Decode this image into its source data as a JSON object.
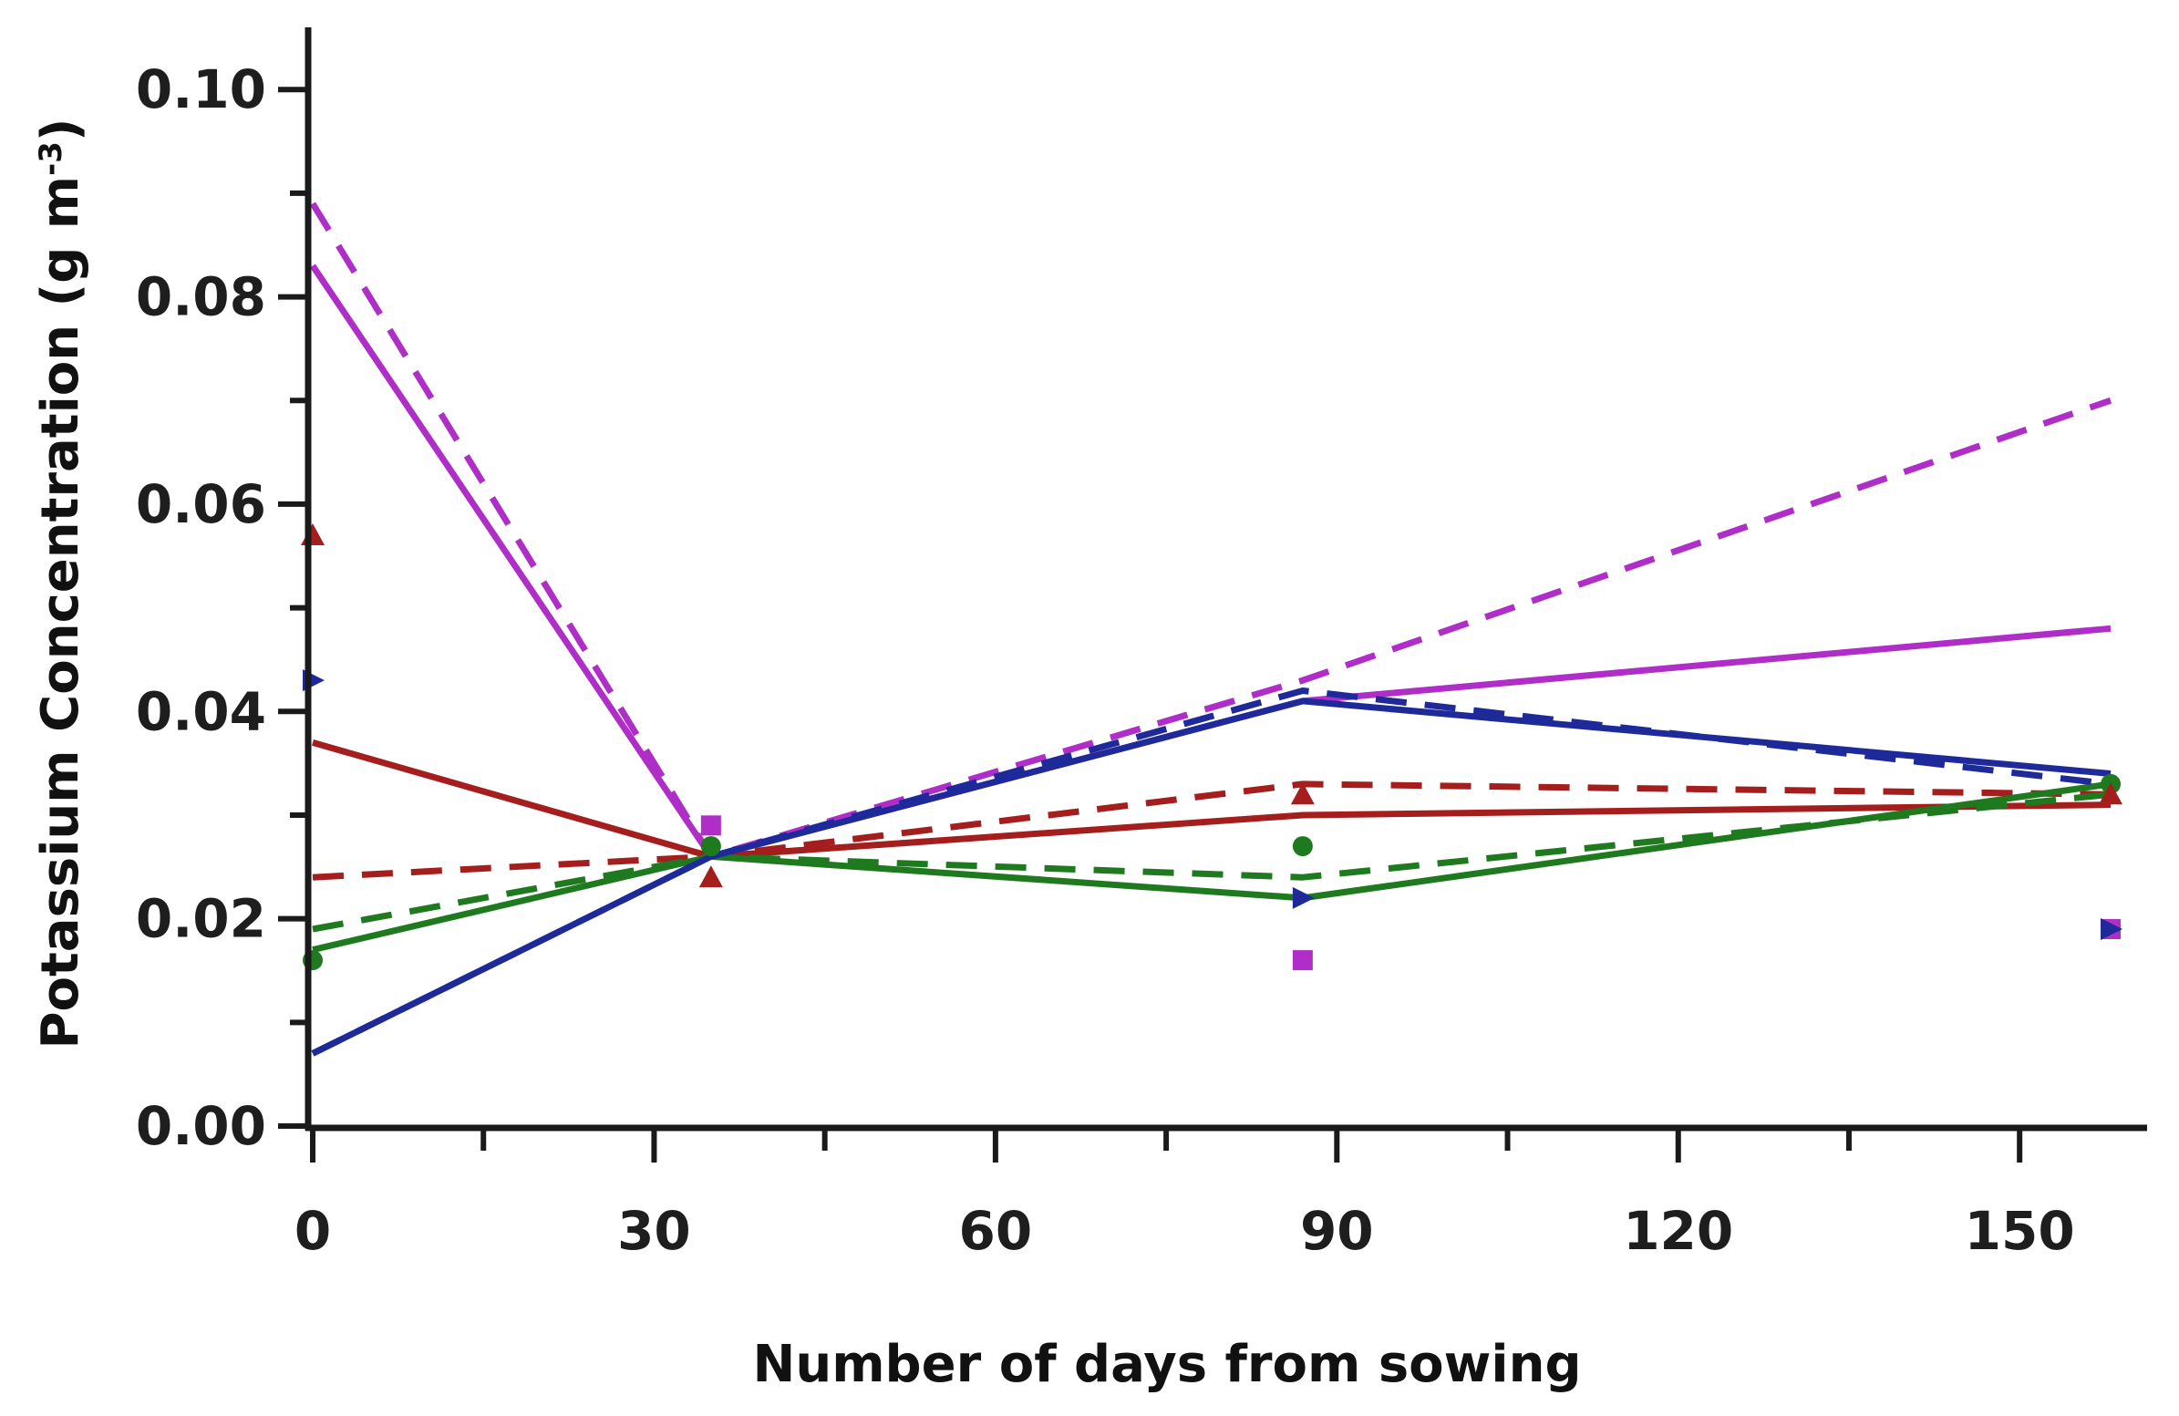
{
  "chart_data": {
    "type": "line",
    "title": "",
    "xlabel": "Number of days from sowing",
    "ylabel": "Potassium Concentration (g m",
    "ylabel_sup": "-3",
    "ylabel_close": ")",
    "xlim": [
      0,
      160
    ],
    "ylim": [
      0,
      0.106
    ],
    "x_ticks": [
      0,
      30,
      60,
      90,
      120,
      150
    ],
    "x_minor_ticks": [
      15,
      45,
      75,
      105,
      135
    ],
    "y_ticks": [
      0.0,
      0.02,
      0.04,
      0.06,
      0.08,
      0.1
    ],
    "y_minor_ticks": [
      0.01,
      0.03,
      0.05,
      0.07,
      0.09
    ],
    "x_tick_labels": [
      "0",
      "30",
      "60",
      "90",
      "120",
      "150"
    ],
    "y_tick_labels": [
      "0.00",
      "0.02",
      "0.04",
      "0.06",
      "0.08",
      "0.10"
    ],
    "grid": false,
    "legend": "none",
    "colors": {
      "magenta": "#b02ec8",
      "red": "#a51e1e",
      "green": "#1f7a1f",
      "blue": "#1f2a9a"
    },
    "series": [
      {
        "color": "magenta",
        "style": "solid",
        "x": [
          0,
          35,
          87,
          158
        ],
        "y": [
          0.083,
          0.026,
          0.041,
          0.048
        ]
      },
      {
        "color": "magenta",
        "style": "dashed",
        "x": [
          0,
          35,
          87,
          158
        ],
        "y": [
          0.089,
          0.026,
          0.043,
          0.07
        ]
      },
      {
        "color": "red",
        "style": "solid",
        "x": [
          0,
          35,
          87,
          158
        ],
        "y": [
          0.037,
          0.026,
          0.03,
          0.031
        ]
      },
      {
        "color": "red",
        "style": "dashed",
        "x": [
          0,
          35,
          87,
          158
        ],
        "y": [
          0.024,
          0.026,
          0.033,
          0.032
        ]
      },
      {
        "color": "green",
        "style": "solid",
        "x": [
          0,
          35,
          87,
          158
        ],
        "y": [
          0.017,
          0.026,
          0.022,
          0.033
        ]
      },
      {
        "color": "green",
        "style": "dashed",
        "x": [
          0,
          35,
          87,
          158
        ],
        "y": [
          0.019,
          0.026,
          0.024,
          0.032
        ]
      },
      {
        "color": "blue",
        "style": "solid",
        "x": [
          0,
          35,
          87,
          158
        ],
        "y": [
          0.007,
          0.026,
          0.041,
          0.034
        ]
      },
      {
        "color": "blue",
        "style": "dashed",
        "x": [
          0,
          35,
          87,
          158
        ],
        "y": [
          0.007,
          0.026,
          0.042,
          0.033
        ]
      }
    ],
    "points": [
      {
        "color": "red",
        "marker": "triangle",
        "x": 0,
        "y": 0.057
      },
      {
        "color": "blue",
        "marker": "triangle-right",
        "x": 0,
        "y": 0.043
      },
      {
        "color": "green",
        "marker": "circle",
        "x": 0,
        "y": 0.016
      },
      {
        "color": "magenta",
        "marker": "square",
        "x": 35,
        "y": 0.029
      },
      {
        "color": "green",
        "marker": "circle",
        "x": 35,
        "y": 0.027
      },
      {
        "color": "red",
        "marker": "triangle",
        "x": 35,
        "y": 0.024
      },
      {
        "color": "red",
        "marker": "triangle",
        "x": 87,
        "y": 0.032
      },
      {
        "color": "green",
        "marker": "circle",
        "x": 87,
        "y": 0.027
      },
      {
        "color": "blue",
        "marker": "triangle-right",
        "x": 87,
        "y": 0.022
      },
      {
        "color": "magenta",
        "marker": "square",
        "x": 87,
        "y": 0.016
      },
      {
        "color": "green",
        "marker": "circle",
        "x": 158,
        "y": 0.033
      },
      {
        "color": "red",
        "marker": "triangle",
        "x": 158,
        "y": 0.032
      },
      {
        "color": "magenta",
        "marker": "square",
        "x": 158,
        "y": 0.019
      },
      {
        "color": "blue",
        "marker": "triangle-right",
        "x": 158,
        "y": 0.019
      }
    ]
  }
}
